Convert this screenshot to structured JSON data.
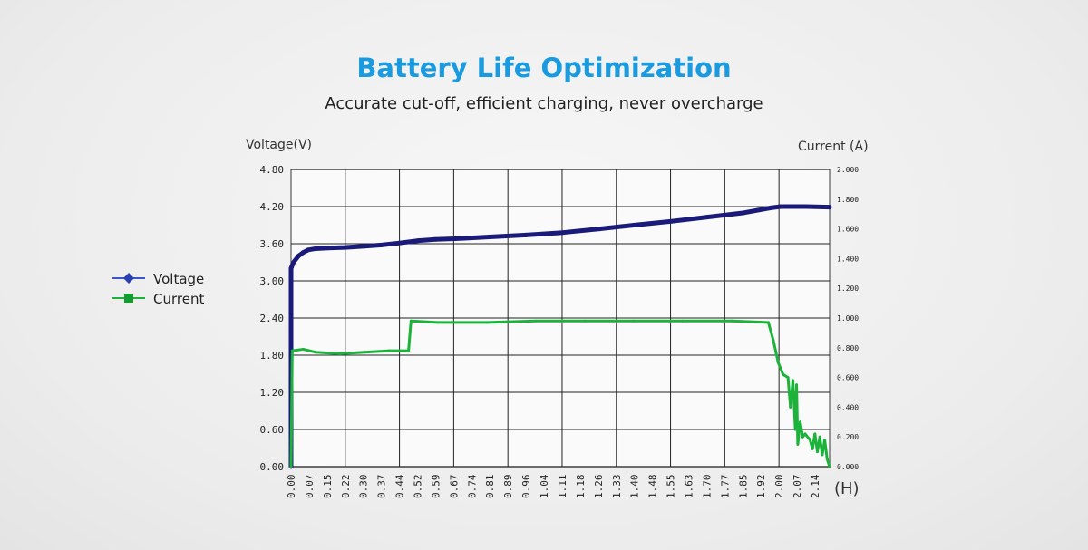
{
  "header": {
    "title": "Battery Life Optimization",
    "subtitle": "Accurate cut-off, efficient charging, never overcharge"
  },
  "chart_data": {
    "type": "line",
    "ylabel": "Voltage(V)",
    "y2label": "Current (A)",
    "xlabel": "(H)",
    "ylim": [
      0,
      4.8
    ],
    "y2lim": [
      0,
      2.0
    ],
    "xlim": [
      0,
      2.2
    ],
    "yticks": [
      "0.00",
      "0.60",
      "1.20",
      "1.80",
      "2.40",
      "3.00",
      "3.60",
      "4.20",
      "4.80"
    ],
    "y2ticks": [
      "0.000",
      "0.200",
      "0.400",
      "0.600",
      "0.800",
      "1.000",
      "1.200",
      "1.400",
      "1.600",
      "1.800",
      "2.000"
    ],
    "xticks": [
      "0.00",
      "0.07",
      "0.15",
      "0.22",
      "0.30",
      "0.37",
      "0.44",
      "0.52",
      "0.59",
      "0.67",
      "0.74",
      "0.81",
      "0.89",
      "0.96",
      "1.04",
      "1.11",
      "1.18",
      "1.26",
      "1.33",
      "1.40",
      "1.48",
      "1.55",
      "1.63",
      "1.70",
      "1.77",
      "1.85",
      "1.92",
      "2.00",
      "2.07",
      "2.14"
    ],
    "grid": true,
    "legend_position": "left",
    "series": [
      {
        "name": "Voltage",
        "axis": "left",
        "color": "#1a1a7a",
        "x": [
          0,
          0,
          0.01,
          0.03,
          0.05,
          0.07,
          0.1,
          0.15,
          0.22,
          0.3,
          0.37,
          0.44,
          0.52,
          0.59,
          0.67,
          0.81,
          0.96,
          1.11,
          1.26,
          1.4,
          1.55,
          1.7,
          1.85,
          1.96,
          2.0,
          2.1,
          2.2
        ],
        "y": [
          0,
          3.2,
          3.3,
          3.4,
          3.46,
          3.5,
          3.52,
          3.53,
          3.54,
          3.56,
          3.58,
          3.61,
          3.65,
          3.67,
          3.68,
          3.71,
          3.74,
          3.78,
          3.84,
          3.9,
          3.96,
          4.03,
          4.1,
          4.18,
          4.2,
          4.2,
          4.19
        ]
      },
      {
        "name": "Current",
        "axis": "right",
        "color": "#1db33b",
        "x": [
          0,
          0.005,
          0.05,
          0.1,
          0.2,
          0.3,
          0.4,
          0.48,
          0.49,
          0.6,
          0.8,
          1.0,
          1.2,
          1.4,
          1.6,
          1.8,
          1.95,
          1.97,
          1.99,
          2.01,
          2.03,
          2.04,
          2.05,
          2.06,
          2.065,
          2.07,
          2.08,
          2.09,
          2.1,
          2.12,
          2.13,
          2.14,
          2.15,
          2.16,
          2.17,
          2.18,
          2.19,
          2.2
        ],
        "y": [
          0,
          0.78,
          0.79,
          0.77,
          0.76,
          0.77,
          0.78,
          0.78,
          0.98,
          0.97,
          0.97,
          0.98,
          0.98,
          0.98,
          0.98,
          0.98,
          0.97,
          0.85,
          0.7,
          0.62,
          0.6,
          0.4,
          0.58,
          0.25,
          0.55,
          0.15,
          0.3,
          0.2,
          0.22,
          0.18,
          0.12,
          0.22,
          0.1,
          0.2,
          0.08,
          0.18,
          0.05,
          0.0
        ]
      }
    ]
  }
}
